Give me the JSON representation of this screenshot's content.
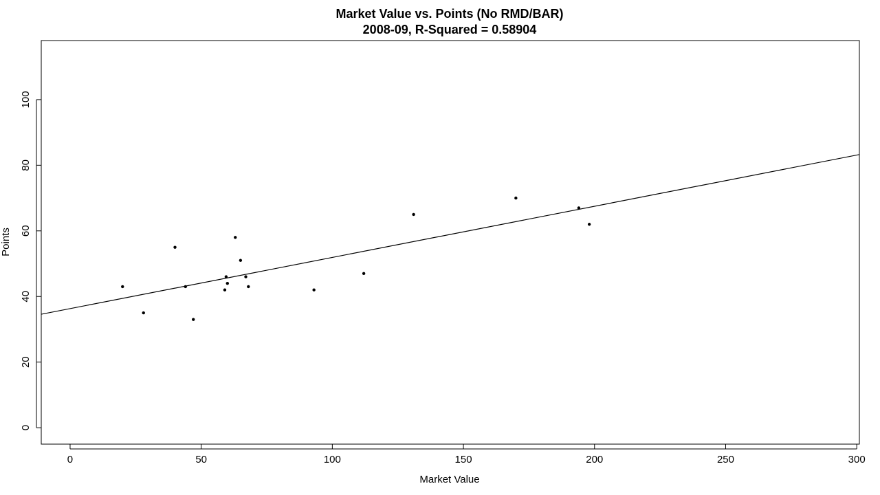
{
  "chart_data": {
    "type": "scatter",
    "title": "Market Value vs. Points (No RMD/BAR)",
    "subtitle": "2008-09, R-Squared = 0.58904",
    "xlabel": "Market Value",
    "ylabel": "Points",
    "xlim": [
      -11,
      301
    ],
    "ylim": [
      -5,
      118
    ],
    "x_ticks": [
      0,
      50,
      100,
      150,
      200,
      250,
      300
    ],
    "y_ticks": [
      0,
      20,
      40,
      60,
      80,
      100
    ],
    "grid": false,
    "points": [
      {
        "x": 20,
        "y": 43
      },
      {
        "x": 28,
        "y": 35
      },
      {
        "x": 40,
        "y": 55
      },
      {
        "x": 44,
        "y": 43
      },
      {
        "x": 47,
        "y": 33
      },
      {
        "x": 59,
        "y": 42
      },
      {
        "x": 59.5,
        "y": 46
      },
      {
        "x": 60,
        "y": 44
      },
      {
        "x": 63,
        "y": 58
      },
      {
        "x": 65,
        "y": 51
      },
      {
        "x": 67,
        "y": 46
      },
      {
        "x": 68,
        "y": 43
      },
      {
        "x": 93,
        "y": 42
      },
      {
        "x": 112,
        "y": 47
      },
      {
        "x": 131,
        "y": 65
      },
      {
        "x": 170,
        "y": 70
      },
      {
        "x": 194,
        "y": 67
      },
      {
        "x": 198,
        "y": 62
      }
    ],
    "regression_line": {
      "intercept": 36.3,
      "slope": 0.156
    }
  }
}
